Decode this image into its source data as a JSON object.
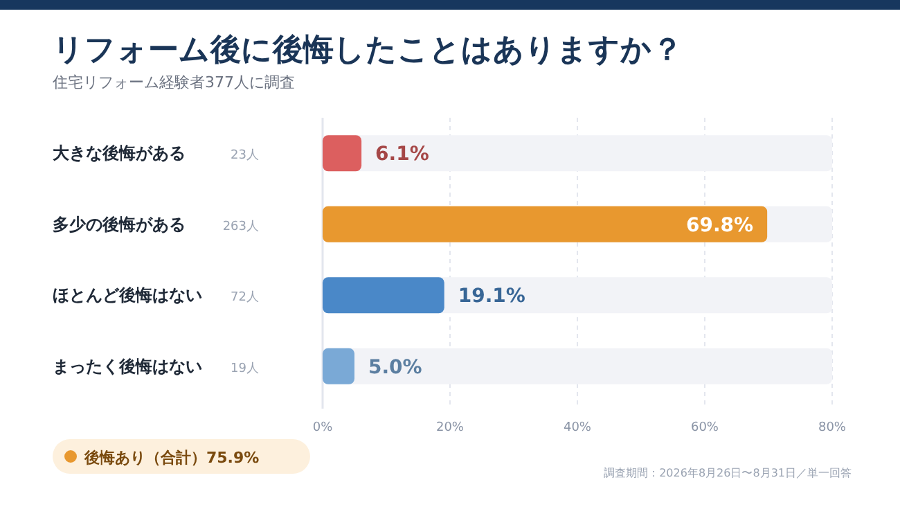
{
  "chart_data": {
    "type": "bar",
    "orientation": "horizontal",
    "title": "リフォーム後に後悔したことはありますか？",
    "subtitle": "住宅リフォーム経験者377人に調査",
    "categories": [
      "大きな後悔がある",
      "多少の後悔がある",
      "ほとんど後悔はない",
      "まったく後悔はない"
    ],
    "values": [
      6.1,
      69.8,
      19.1,
      5.0
    ],
    "colors": [
      "#dc5f5f",
      "#e8982f",
      "#4a88c8",
      "#7aa9d6"
    ],
    "value_labels": [
      "6.1%",
      "69.8%",
      "19.1%",
      "5.0%"
    ],
    "xlim": [
      0,
      80
    ],
    "xticks": [
      {
        "value": 0,
        "label": "0%"
      },
      {
        "value": 20,
        "label": "20%"
      },
      {
        "value": 40,
        "label": "40%"
      },
      {
        "value": 60,
        "label": "60%"
      },
      {
        "value": 80,
        "label": "80%"
      }
    ],
    "grid": "x",
    "annotations": [
      "23人",
      "263人",
      "72人",
      "19人",
      "後悔あり（合計）75.9%",
      "調査期間：2026年8月26日〜8月31日／単一回答"
    ]
  }
}
